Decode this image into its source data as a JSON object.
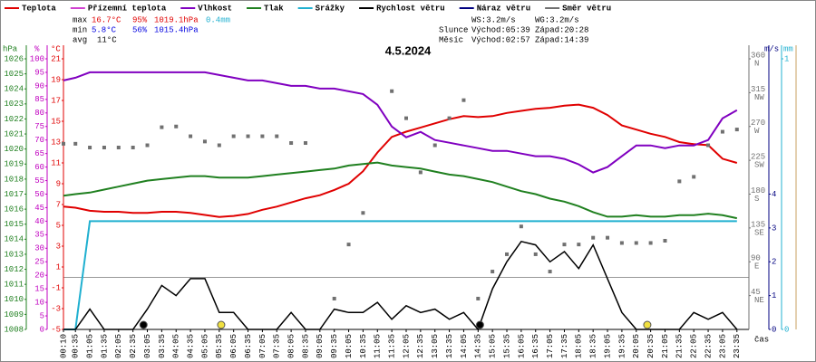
{
  "chart_data": {
    "type": "line",
    "title": "4.5.2024",
    "x": [
      10,
      35,
      65,
      95,
      125,
      155,
      185,
      215,
      245,
      275,
      305,
      335,
      365,
      395,
      425,
      455,
      485,
      515,
      545,
      575,
      605,
      635,
      665,
      695,
      725,
      755,
      785,
      815,
      845,
      875,
      905,
      935,
      965,
      995,
      1025,
      1055,
      1085,
      1115,
      1145,
      1175,
      1205,
      1235,
      1265,
      1295,
      1325,
      1355,
      1385,
      1415
    ],
    "xlim": [
      10,
      1440
    ],
    "xlabel": "čas",
    "xticks": [
      {
        "value": 10,
        "label": "00:10"
      },
      {
        "value": 35,
        "label": "00:35"
      },
      {
        "value": 65,
        "label": "01:05"
      },
      {
        "value": 95,
        "label": "01:35"
      },
      {
        "value": 125,
        "label": "02:05"
      },
      {
        "value": 155,
        "label": "02:35"
      },
      {
        "value": 185,
        "label": "03:05"
      },
      {
        "value": 215,
        "label": "03:35"
      },
      {
        "value": 245,
        "label": "04:05"
      },
      {
        "value": 275,
        "label": "04:35"
      },
      {
        "value": 305,
        "label": "05:05"
      },
      {
        "value": 335,
        "label": "05:35"
      },
      {
        "value": 365,
        "label": "06:05"
      },
      {
        "value": 395,
        "label": "06:35"
      },
      {
        "value": 425,
        "label": "07:05"
      },
      {
        "value": 455,
        "label": "07:35"
      },
      {
        "value": 485,
        "label": "08:05"
      },
      {
        "value": 515,
        "label": "08:35"
      },
      {
        "value": 545,
        "label": "09:05"
      },
      {
        "value": 575,
        "label": "09:35"
      },
      {
        "value": 605,
        "label": "10:05"
      },
      {
        "value": 635,
        "label": "10:35"
      },
      {
        "value": 665,
        "label": "11:05"
      },
      {
        "value": 695,
        "label": "11:35"
      },
      {
        "value": 725,
        "label": "12:05"
      },
      {
        "value": 755,
        "label": "12:35"
      },
      {
        "value": 785,
        "label": "13:05"
      },
      {
        "value": 815,
        "label": "13:35"
      },
      {
        "value": 845,
        "label": "14:05"
      },
      {
        "value": 875,
        "label": "14:35"
      },
      {
        "value": 905,
        "label": "15:05"
      },
      {
        "value": 935,
        "label": "15:35"
      },
      {
        "value": 965,
        "label": "16:05"
      },
      {
        "value": 995,
        "label": "16:35"
      },
      {
        "value": 1025,
        "label": "17:05"
      },
      {
        "value": 1055,
        "label": "17:35"
      },
      {
        "value": 1085,
        "label": "18:05"
      },
      {
        "value": 1115,
        "label": "18:35"
      },
      {
        "value": 1145,
        "label": "19:05"
      },
      {
        "value": 1175,
        "label": "19:35"
      },
      {
        "value": 1205,
        "label": "20:05"
      },
      {
        "value": 1235,
        "label": "20:35"
      },
      {
        "value": 1265,
        "label": "21:05"
      },
      {
        "value": 1295,
        "label": "21:35"
      },
      {
        "value": 1325,
        "label": "22:05"
      },
      {
        "value": 1355,
        "label": "22:35"
      },
      {
        "value": 1385,
        "label": "23:05"
      },
      {
        "value": 1415,
        "label": "23:35"
      }
    ],
    "axes": [
      {
        "name": "hPa",
        "side": "left",
        "color": "#208020",
        "lim": [
          1008,
          1026
        ],
        "ticks": [
          1008,
          1009,
          1010,
          1011,
          1012,
          1013,
          1014,
          1015,
          1016,
          1017,
          1018,
          1019,
          1020,
          1021,
          1022,
          1023,
          1024,
          1025,
          1026
        ]
      },
      {
        "name": "%",
        "side": "left",
        "color": "#c000c0",
        "lim": [
          0,
          100
        ],
        "ticks": [
          0,
          5,
          10,
          15,
          20,
          25,
          30,
          35,
          40,
          45,
          50,
          55,
          60,
          65,
          70,
          75,
          80,
          85,
          90,
          95,
          100
        ]
      },
      {
        "name": "°C",
        "side": "left",
        "color": "#e00000",
        "lim": [
          -5,
          21
        ],
        "ticks": [
          -5,
          -3,
          -1,
          1,
          3,
          5,
          7,
          9,
          11,
          13,
          15,
          17,
          19,
          21
        ]
      },
      {
        "side": "right",
        "color": "#707070",
        "lim": [
          0,
          360
        ],
        "ticks": [
          45,
          90,
          135,
          180,
          225,
          270,
          315,
          360
        ],
        "tick_names": [
          "NE",
          "E",
          "SE",
          "S",
          "SW",
          "W",
          "NW",
          "N"
        ]
      },
      {
        "name": "m/s",
        "side": "right",
        "color": "#000080",
        "lim": [
          0,
          8
        ],
        "ticks": [
          0,
          1,
          2,
          3,
          4
        ]
      },
      {
        "name": "mm",
        "side": "right",
        "color": "#20b0d0",
        "lim": [
          0,
          1
        ],
        "ticks": [
          0,
          1
        ]
      }
    ],
    "series": [
      {
        "name": "Teplota",
        "color": "#e00000",
        "axis": 2,
        "values": [
          6.8,
          6.7,
          6.4,
          6.3,
          6.3,
          6.2,
          6.2,
          6.3,
          6.3,
          6.2,
          6.0,
          5.8,
          5.9,
          6.1,
          6.5,
          6.8,
          7.2,
          7.6,
          7.9,
          8.4,
          9.0,
          10.2,
          12.0,
          13.5,
          14.0,
          14.4,
          14.8,
          15.2,
          15.5,
          15.4,
          15.5,
          15.8,
          16.0,
          16.2,
          16.3,
          16.5,
          16.6,
          16.3,
          15.6,
          14.6,
          14.2,
          13.8,
          13.5,
          13.0,
          12.8,
          12.7,
          11.4,
          11.0
        ]
      },
      {
        "name": "Přízemní teplota",
        "color": "#d040d0",
        "axis": 2,
        "values": [
          null,
          null,
          null,
          null,
          null,
          null,
          null,
          null,
          null,
          null,
          null,
          null,
          null,
          null,
          null,
          null,
          null,
          null,
          null,
          null,
          null,
          null,
          null,
          null,
          null,
          null,
          null,
          null,
          null,
          null,
          null,
          null,
          null,
          null,
          null,
          null,
          null,
          null,
          null,
          null,
          null,
          null,
          null,
          null,
          null,
          null,
          null,
          null
        ]
      },
      {
        "name": "Vlhkost",
        "color": "#8000c0",
        "axis": 1,
        "values": [
          92,
          93,
          95,
          95,
          95,
          95,
          95,
          95,
          95,
          95,
          95,
          94,
          93,
          92,
          92,
          91,
          90,
          90,
          89,
          89,
          88,
          87,
          83,
          75,
          71,
          73,
          70,
          69,
          68,
          67,
          66,
          66,
          65,
          64,
          64,
          63,
          61,
          58,
          60,
          64,
          68,
          68,
          67,
          68,
          68,
          70,
          78,
          81
        ]
      },
      {
        "name": "Tlak",
        "color": "#208020",
        "axis": 0,
        "values": [
          1016.9,
          1017.0,
          1017.1,
          1017.3,
          1017.5,
          1017.7,
          1017.9,
          1018.0,
          1018.1,
          1018.2,
          1018.2,
          1018.1,
          1018.1,
          1018.1,
          1018.2,
          1018.3,
          1018.4,
          1018.5,
          1018.6,
          1018.7,
          1018.9,
          1019.0,
          1019.1,
          1018.9,
          1018.8,
          1018.7,
          1018.5,
          1018.3,
          1018.2,
          1018.0,
          1017.8,
          1017.5,
          1017.2,
          1017.0,
          1016.7,
          1016.5,
          1016.2,
          1015.8,
          1015.5,
          1015.5,
          1015.6,
          1015.5,
          1015.5,
          1015.6,
          1015.6,
          1015.7,
          1015.6,
          1015.4
        ]
      },
      {
        "name": "Srážky",
        "color": "#20b0d0",
        "axis": 5,
        "values": [
          0,
          0,
          0.4,
          0.4,
          0.4,
          0.4,
          0.4,
          0.4,
          0.4,
          0.4,
          0.4,
          0.4,
          0.4,
          0.4,
          0.4,
          0.4,
          0.4,
          0.4,
          0.4,
          0.4,
          0.4,
          0.4,
          0.4,
          0.4,
          0.4,
          0.4,
          0.4,
          0.4,
          0.4,
          0.4,
          0.4,
          0.4,
          0.4,
          0.4,
          0.4,
          0.4,
          0.4,
          0.4,
          0.4,
          0.4,
          0.4,
          0.4,
          0.4,
          0.4,
          0.4,
          0.4,
          0.4,
          0.4
        ]
      },
      {
        "name": "Rychlost větru",
        "color": "#000000",
        "axis": 4,
        "values": [
          0,
          0,
          0.6,
          0,
          0,
          0,
          0.6,
          1.3,
          1,
          1.5,
          1.5,
          0.5,
          0.5,
          0,
          0,
          0,
          0.5,
          0,
          0,
          0.6,
          0.5,
          0.5,
          0.8,
          0.3,
          0.7,
          0.5,
          0.6,
          0.3,
          0.5,
          0,
          1.2,
          2,
          2.6,
          2.5,
          2,
          2.3,
          1.8,
          2.5,
          1.5,
          0.5,
          0,
          0,
          0,
          0,
          0.5,
          0.3,
          0.5,
          0
        ]
      },
      {
        "name": "Náraz větru",
        "color": "#000080",
        "axis": 4,
        "values": [
          null,
          null,
          null,
          null,
          null,
          null,
          null,
          null,
          null,
          null,
          null,
          null,
          null,
          null,
          null,
          null,
          null,
          null,
          null,
          null,
          null,
          null,
          null,
          null,
          null,
          null,
          null,
          null,
          null,
          null,
          null,
          null,
          null,
          null,
          null,
          null,
          null,
          null,
          null,
          null,
          null,
          null,
          null,
          null,
          null,
          null,
          null,
          null
        ]
      },
      {
        "name": "Směr větru",
        "color": "#707070",
        "axis": 3,
        "style": "points",
        "values": [
          247,
          247,
          242,
          242,
          242,
          242,
          245,
          269,
          270,
          257,
          250,
          245,
          257,
          257,
          257,
          257,
          248,
          248,
          null,
          41,
          113,
          155,
          null,
          317,
          281,
          209,
          245,
          281,
          305,
          41,
          77,
          100,
          137,
          100,
          77,
          113,
          113,
          122,
          122,
          115,
          115,
          115,
          118,
          197,
          203,
          245,
          263,
          266
        ]
      }
    ],
    "stats": [
      {
        "label": "max",
        "temp": "16.7°C",
        "hum": "95%",
        "press": "1019.1hPa",
        "rain": "0.4mm"
      },
      {
        "label": "min",
        "temp": "5.8°C",
        "hum": "56%",
        "press": "1015.4hPa"
      },
      {
        "label": "avg",
        "temp": "11°C"
      }
    ],
    "wind_info": [
      "WS:3.2m/s",
      "WG:3.2m/s"
    ],
    "sun": {
      "name": "Slunce",
      "rise": "Východ:05:39",
      "set": "Západ:20:28"
    },
    "moon": {
      "name": "Měsíc",
      "rise": "Východ:02:57",
      "set": "Západ:14:39"
    }
  }
}
